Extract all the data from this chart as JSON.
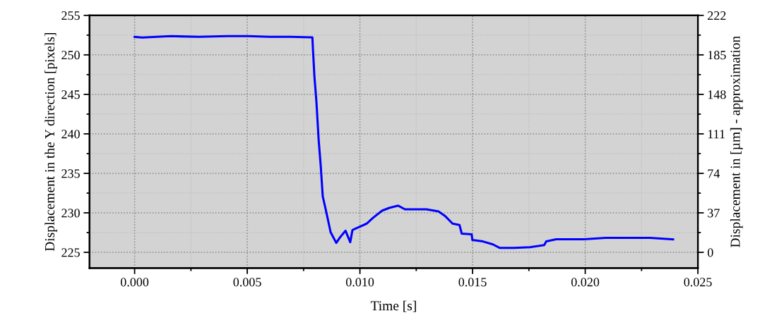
{
  "chart_data": {
    "type": "line",
    "xlabel": "Time [s]",
    "ylabel": "Displacement in the Y direction [pixels]",
    "y2label": "Displacement in [µm] - approximation",
    "xlim": [
      -0.002,
      0.025
    ],
    "xticks": [
      {
        "value": 0,
        "label": "0.000"
      },
      {
        "value": 0.005,
        "label": "0.005"
      },
      {
        "value": 0.01,
        "label": "0.010"
      },
      {
        "value": 0.015,
        "label": "0.015"
      },
      {
        "value": 0.02,
        "label": "0.020"
      },
      {
        "value": 0.025,
        "label": "0.025"
      }
    ],
    "ylim": [
      223,
      255
    ],
    "yticks": [
      225,
      230,
      235,
      240,
      245,
      250,
      255
    ],
    "y2lim": [
      -14.8,
      222
    ],
    "y2ticks": [
      0,
      37,
      74,
      111,
      148,
      185,
      222
    ],
    "grid": true,
    "marker": "none",
    "line_style": "solid",
    "series": [
      {
        "color": "#0000ff",
        "x": [
          0.0,
          0.00034,
          0.0016,
          0.00285,
          0.0041,
          0.00504,
          0.00598,
          0.00692,
          0.00789,
          0.00792,
          0.00798,
          0.00807,
          0.00817,
          0.00826,
          0.00835,
          0.00848,
          0.0087,
          0.00895,
          0.0091,
          0.00936,
          0.00957,
          0.00967,
          0.0103,
          0.01058,
          0.01098,
          0.0113,
          0.0117,
          0.012,
          0.01245,
          0.01295,
          0.01349,
          0.0138,
          0.01411,
          0.01442,
          0.01452,
          0.01496,
          0.01499,
          0.01546,
          0.0159,
          0.01621,
          0.01683,
          0.01755,
          0.01818,
          0.01827,
          0.01871,
          0.01996,
          0.0209,
          0.02287,
          0.0239
        ],
        "values": [
          252.28,
          252.19,
          252.37,
          252.28,
          252.37,
          252.37,
          252.28,
          252.28,
          252.22,
          250.47,
          247.3,
          244.04,
          239.15,
          235.98,
          232.08,
          230.45,
          227.55,
          226.2,
          226.83,
          227.74,
          226.29,
          227.83,
          228.64,
          229.37,
          230.27,
          230.63,
          230.91,
          230.45,
          230.45,
          230.45,
          230.18,
          229.55,
          228.64,
          228.46,
          227.37,
          227.28,
          226.56,
          226.38,
          226.01,
          225.56,
          225.56,
          225.65,
          225.92,
          226.38,
          226.65,
          226.65,
          226.83,
          226.83,
          226.65
        ]
      }
    ]
  }
}
